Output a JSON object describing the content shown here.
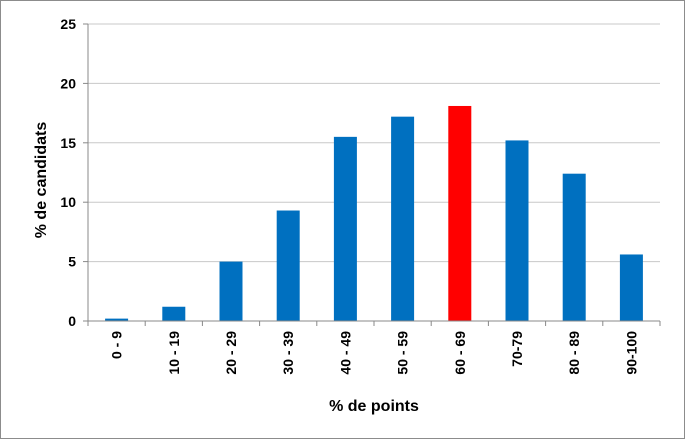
{
  "chart_data": {
    "type": "bar",
    "title": "",
    "xlabel": "% de points",
    "ylabel": "% de candidats",
    "ylim": [
      0,
      25
    ],
    "yticks": [
      0,
      5,
      10,
      15,
      20,
      25
    ],
    "grid": "horizontal",
    "legend": "none",
    "categories": [
      "0 - 9",
      "10 - 19",
      "20 - 29",
      "30 - 39",
      "40 - 49",
      "50 - 59",
      "60 - 69",
      "70-79",
      "80 - 89",
      "90-100"
    ],
    "values": [
      0.2,
      1.2,
      5.0,
      9.3,
      15.5,
      17.2,
      18.1,
      15.2,
      12.4,
      5.6
    ],
    "colors": {
      "default": "#0070c0",
      "highlight": "#ff0000",
      "grid": "#c8c8c8",
      "axis": "#888888"
    },
    "highlight_index": 6
  }
}
